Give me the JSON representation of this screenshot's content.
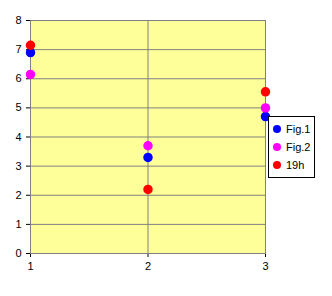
{
  "chart_data": {
    "type": "scatter",
    "x": [
      1,
      2,
      3
    ],
    "series": [
      {
        "name": "Fig.1",
        "color": "#0000ff",
        "values": [
          6.9,
          3.3,
          4.7
        ]
      },
      {
        "name": "Fig.2",
        "color": "#ff00ff",
        "values": [
          6.15,
          3.7,
          5.0
        ]
      },
      {
        "name": "19h",
        "color": "#ff0000",
        "values": [
          7.15,
          2.2,
          5.55
        ]
      }
    ],
    "xlim": [
      1,
      3
    ],
    "xticks": [
      1,
      2,
      3
    ],
    "ylim": [
      0,
      8
    ],
    "yticks": [
      0,
      1,
      2,
      3,
      4,
      5,
      6,
      7,
      8
    ],
    "grid": true,
    "legend": "right",
    "marker": "circle"
  }
}
